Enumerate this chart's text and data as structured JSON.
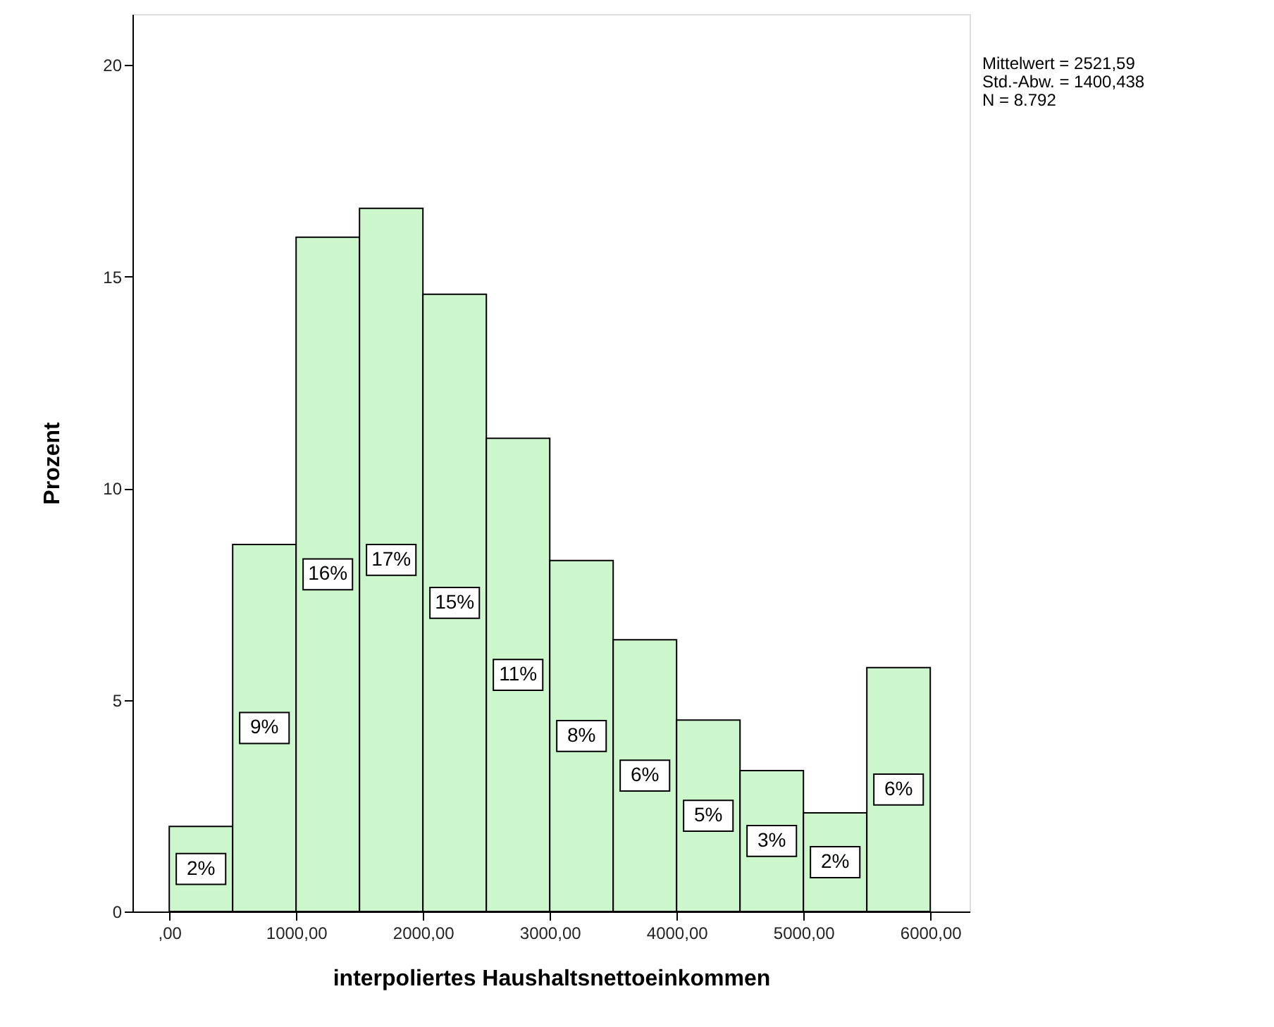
{
  "chart_data": {
    "type": "histogram",
    "xlabel": "interpoliertes Haushaltsnettoeinkommen",
    "ylabel": "Prozent",
    "bins": [
      0,
      500,
      1000,
      1500,
      2000,
      2500,
      3000,
      3500,
      4000,
      4500,
      5000,
      5500,
      6000
    ],
    "values": [
      2.01,
      8.67,
      15.93,
      16.61,
      14.58,
      11.18,
      8.29,
      6.42,
      4.52,
      3.33,
      2.33,
      5.76
    ],
    "value_labels": [
      "2%",
      "9%",
      "16%",
      "17%",
      "15%",
      "11%",
      "8%",
      "6%",
      "5%",
      "3%",
      "2%",
      "6%"
    ],
    "color": "#ccf7cc",
    "xlim": [
      -290,
      6310
    ],
    "ylim": [
      0,
      21.2
    ],
    "xticks": [
      {
        "value": 0,
        "label": ",00"
      },
      {
        "value": 1000,
        "label": "1000,00"
      },
      {
        "value": 2000,
        "label": "2000,00"
      },
      {
        "value": 3000,
        "label": "3000,00"
      },
      {
        "value": 4000,
        "label": "4000,00"
      },
      {
        "value": 5000,
        "label": "5000,00"
      },
      {
        "value": 6000,
        "label": "6000,00"
      }
    ],
    "yticks": [
      0,
      5,
      10,
      15,
      20
    ],
    "annotations": [
      "Mittelwert = 2521,59",
      "Std.-Abw. = 1400,438",
      "N = 8.792"
    ],
    "grid": false
  }
}
